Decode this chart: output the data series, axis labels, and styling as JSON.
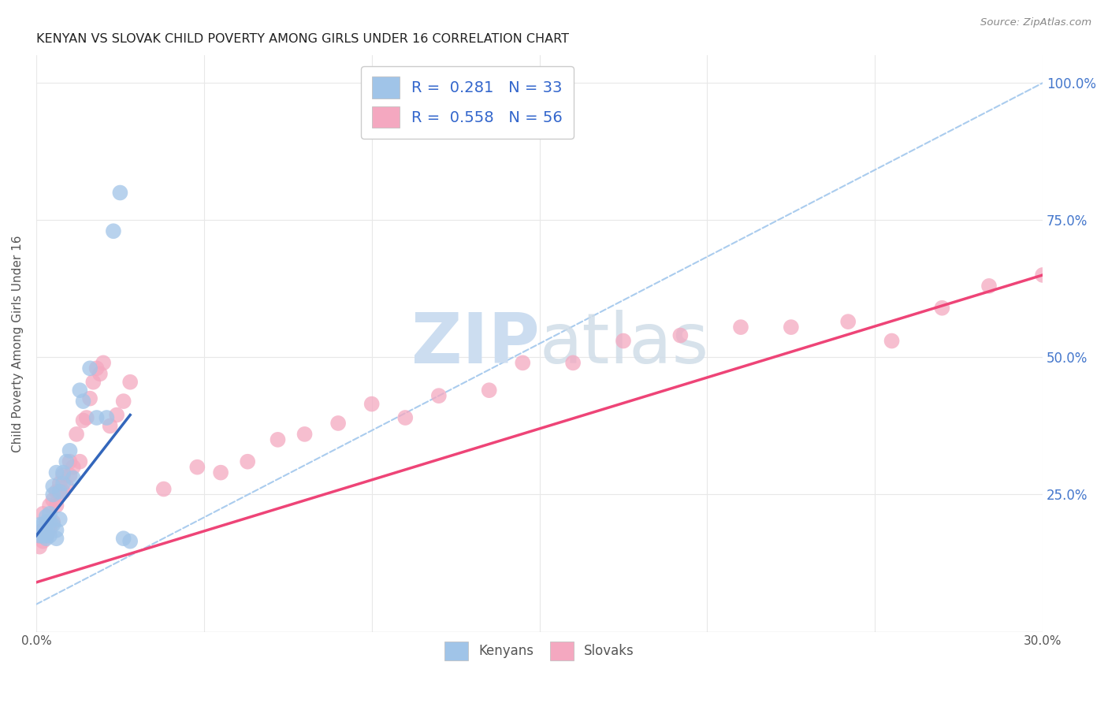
{
  "title": "KENYAN VS SLOVAK CHILD POVERTY AMONG GIRLS UNDER 16 CORRELATION CHART",
  "source": "Source: ZipAtlas.com",
  "ylabel": "Child Poverty Among Girls Under 16",
  "legend_r_color": "#3366cc",
  "watermark": "ZIPatlas",
  "watermark_color": "#ccddf0",
  "background_color": "#ffffff",
  "kenyan_scatter_color": "#a0c4e8",
  "slovak_scatter_color": "#f4a8c0",
  "kenyan_line_color": "#3366bb",
  "slovak_line_color": "#ee4477",
  "ref_line_color": "#aaccee",
  "xmin": 0.0,
  "xmax": 0.3,
  "ymin": 0.0,
  "ymax": 1.05,
  "grid_color": "#e8e8e8",
  "kenyan_x": [
    0.001,
    0.001,
    0.002,
    0.002,
    0.003,
    0.003,
    0.003,
    0.003,
    0.004,
    0.004,
    0.004,
    0.005,
    0.005,
    0.005,
    0.006,
    0.006,
    0.006,
    0.007,
    0.007,
    0.008,
    0.008,
    0.009,
    0.01,
    0.011,
    0.013,
    0.014,
    0.016,
    0.018,
    0.021,
    0.023,
    0.025,
    0.026,
    0.028
  ],
  "kenyan_y": [
    0.175,
    0.195,
    0.175,
    0.195,
    0.17,
    0.175,
    0.2,
    0.21,
    0.175,
    0.2,
    0.215,
    0.195,
    0.25,
    0.265,
    0.17,
    0.185,
    0.29,
    0.205,
    0.255,
    0.27,
    0.29,
    0.31,
    0.33,
    0.28,
    0.44,
    0.42,
    0.48,
    0.39,
    0.39,
    0.73,
    0.8,
    0.17,
    0.165
  ],
  "slovak_x": [
    0.001,
    0.001,
    0.002,
    0.002,
    0.002,
    0.003,
    0.003,
    0.004,
    0.004,
    0.005,
    0.005,
    0.006,
    0.006,
    0.007,
    0.007,
    0.008,
    0.008,
    0.009,
    0.01,
    0.01,
    0.011,
    0.012,
    0.013,
    0.014,
    0.015,
    0.016,
    0.017,
    0.018,
    0.019,
    0.02,
    0.022,
    0.024,
    0.026,
    0.028,
    0.038,
    0.048,
    0.055,
    0.063,
    0.072,
    0.08,
    0.09,
    0.1,
    0.11,
    0.12,
    0.135,
    0.145,
    0.16,
    0.175,
    0.192,
    0.21,
    0.225,
    0.242,
    0.255,
    0.27,
    0.284,
    0.3
  ],
  "slovak_y": [
    0.155,
    0.175,
    0.165,
    0.185,
    0.215,
    0.175,
    0.195,
    0.185,
    0.23,
    0.2,
    0.24,
    0.23,
    0.255,
    0.25,
    0.27,
    0.255,
    0.285,
    0.265,
    0.285,
    0.31,
    0.3,
    0.36,
    0.31,
    0.385,
    0.39,
    0.425,
    0.455,
    0.48,
    0.47,
    0.49,
    0.375,
    0.395,
    0.42,
    0.455,
    0.26,
    0.3,
    0.29,
    0.31,
    0.35,
    0.36,
    0.38,
    0.415,
    0.39,
    0.43,
    0.44,
    0.49,
    0.49,
    0.53,
    0.54,
    0.555,
    0.555,
    0.565,
    0.53,
    0.59,
    0.63,
    0.65
  ],
  "kenyan_line_x": [
    0.0,
    0.028
  ],
  "kenyan_line_y": [
    0.175,
    0.395
  ],
  "slovak_line_x": [
    0.0,
    0.3
  ],
  "slovak_line_y": [
    0.09,
    0.65
  ]
}
